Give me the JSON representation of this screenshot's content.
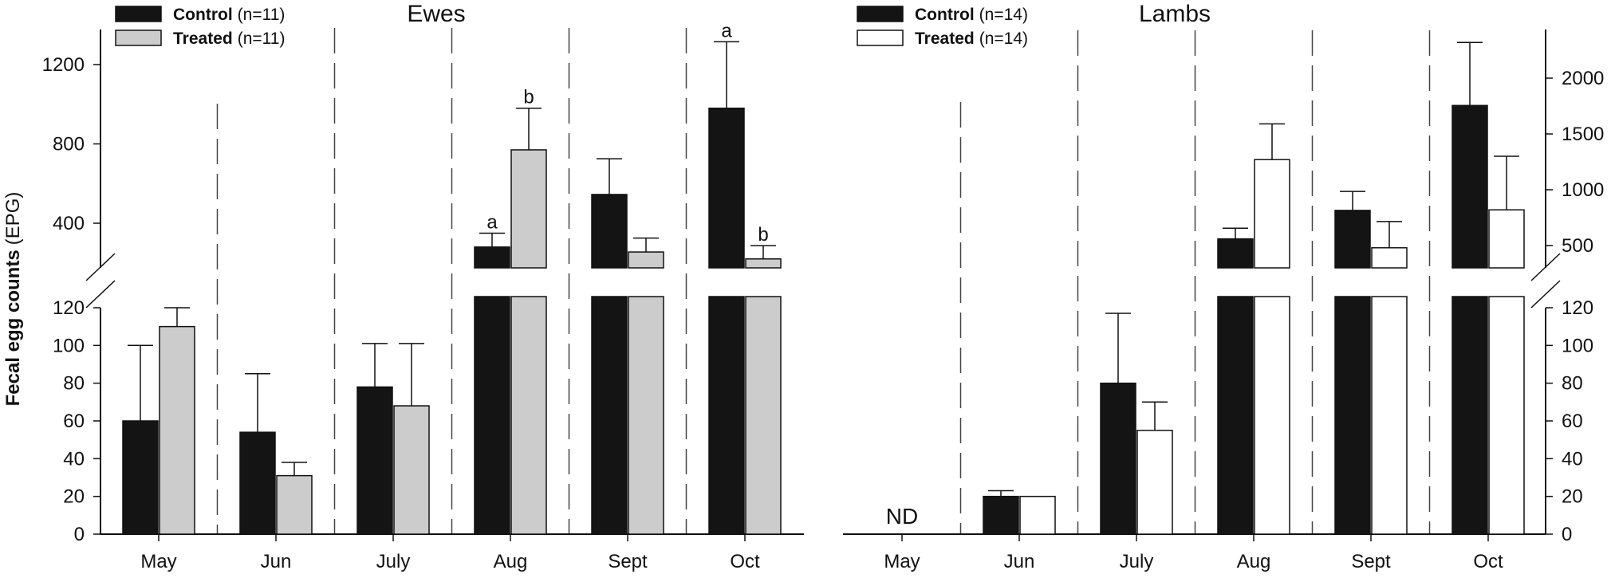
{
  "chart_data": [
    {
      "type": "bar",
      "panel": "Ewes",
      "title": "Ewes",
      "ylabel_bold": "Fecal egg counts",
      "ylabel_normal": "(EPG)",
      "xlabel": "",
      "categories": [
        "May",
        "Jun",
        "July",
        "Aug",
        "Sept",
        "Oct"
      ],
      "axis_side": "left",
      "broken_axis": true,
      "lower_ylim": [
        0,
        125
      ],
      "lower_ticks": [
        0,
        20,
        40,
        60,
        80,
        100,
        120
      ],
      "upper_ylim": [
        200,
        1350
      ],
      "upper_ticks": [
        400,
        800,
        1200
      ],
      "legend_position": "top-left",
      "series": [
        {
          "name": "Control",
          "legend_bold": "Control",
          "legend_n": "(n=11)",
          "color": "#141414",
          "values": [
            60,
            54,
            78,
            280,
            545,
            980
          ],
          "error_upper": [
            100,
            85,
            101,
            350,
            725,
            1315
          ],
          "significance": [
            "",
            "",
            "",
            "a",
            "",
            "a"
          ]
        },
        {
          "name": "Treated",
          "legend_bold": "Treated",
          "legend_n": "(n=11)",
          "color": "#cccccc",
          "values": [
            110,
            31,
            68,
            770,
            255,
            220
          ],
          "error_upper": [
            120,
            38,
            101,
            980,
            325,
            287
          ],
          "significance": [
            "",
            "",
            "",
            "b",
            "",
            "b"
          ]
        }
      ],
      "annotations": []
    },
    {
      "type": "bar",
      "panel": "Lambs",
      "title": "Lambs",
      "xlabel": "",
      "categories": [
        "May",
        "Jun",
        "July",
        "Aug",
        "Sept",
        "Oct"
      ],
      "axis_side": "right",
      "broken_axis": true,
      "lower_ylim": [
        0,
        125
      ],
      "lower_ticks": [
        0,
        20,
        40,
        60,
        80,
        100,
        120
      ],
      "upper_ylim": [
        300,
        2400
      ],
      "upper_ticks": [
        500,
        1000,
        1500,
        2000
      ],
      "legend_position": "top-left",
      "series": [
        {
          "name": "Control",
          "legend_bold": "Control",
          "legend_n": "(n=14)",
          "color": "#141414",
          "values": [
            null,
            20,
            80,
            560,
            815,
            1755
          ],
          "error_upper": [
            null,
            23,
            117,
            655,
            985,
            2320
          ],
          "significance": [
            "",
            "",
            "",
            "",
            "",
            ""
          ]
        },
        {
          "name": "Treated",
          "legend_bold": "Treated",
          "legend_n": "(n=14)",
          "color": "#ffffff",
          "values": [
            null,
            20,
            55,
            1270,
            480,
            820
          ],
          "error_upper": [
            null,
            20,
            70,
            1590,
            715,
            1300
          ],
          "significance": [
            "",
            "",
            "",
            "",
            "",
            ""
          ]
        }
      ],
      "annotations": [
        {
          "category": "May",
          "text": "ND"
        }
      ]
    }
  ]
}
